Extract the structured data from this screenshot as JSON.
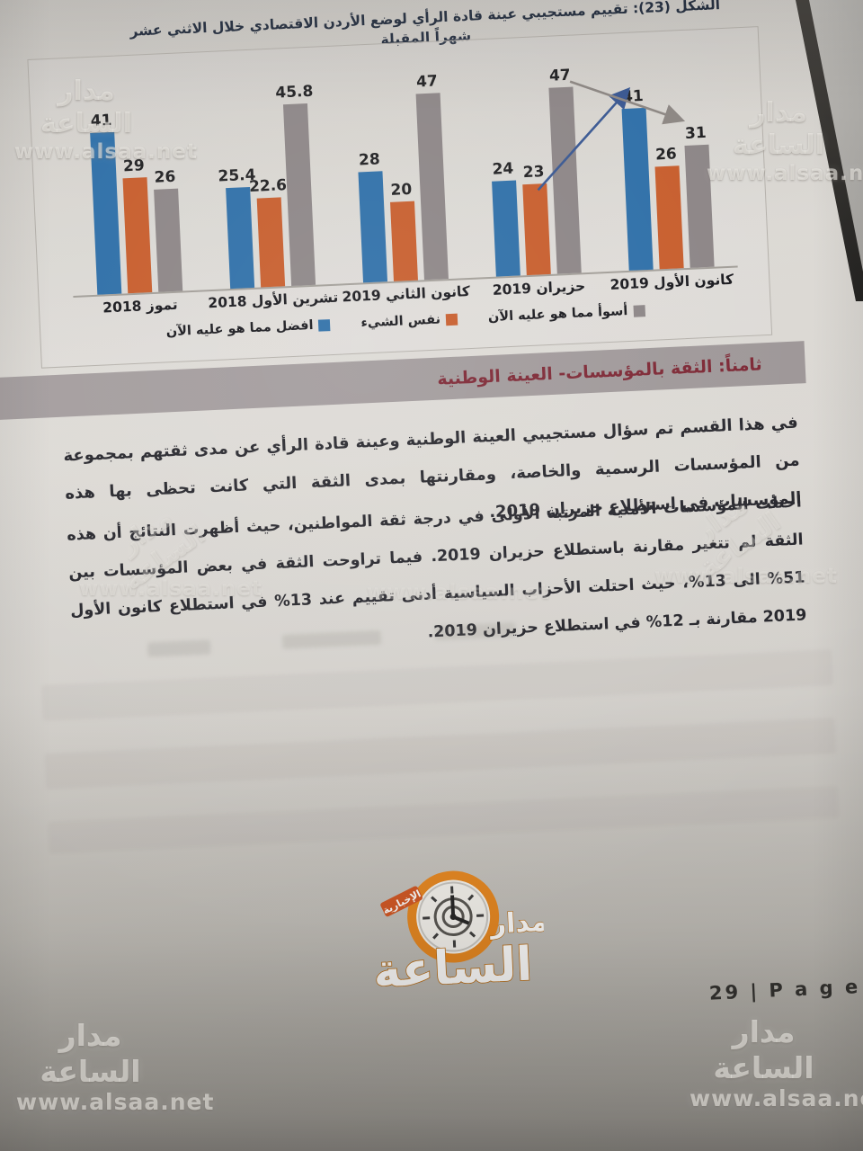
{
  "figure": {
    "title": "الشكل (23): تقييم مستجيبي عينة قادة الرأي لوضع الأردن الاقتصادي خلال الاثني عشر شهراً المقبلة"
  },
  "chart_data": {
    "type": "bar",
    "categories": [
      "تموز 2018",
      "تشرين الأول 2018",
      "كانون الثاني 2019",
      "حزيران 2019",
      "كانون الأول 2019"
    ],
    "series": [
      {
        "name": "افضل مما هو عليه الآن",
        "color": "#2a6ca6",
        "values": [
          41,
          25.4,
          28,
          24,
          41
        ]
      },
      {
        "name": "نفس الشيء",
        "color": "#c65a28",
        "values": [
          29,
          22.6,
          20,
          23,
          26
        ]
      },
      {
        "name": "أسوأ مما هو عليه الآن",
        "color": "#8a8384",
        "values": [
          26,
          45.8,
          47,
          47,
          31
        ]
      }
    ],
    "ylim": [
      0,
      50
    ],
    "grid": false,
    "legend_position": "bottom",
    "annotations": [
      "سهم أزرق صاعد من حزيران 2019 إلى قيمة 41 في كانون الأول 2019",
      "سهم رمادي من قمة 47 في حزيران 2019 إلى قيمة 31 في كانون الأول 2019"
    ]
  },
  "section": {
    "heading": "ثامناً: الثقة بالمؤسسات- العينة الوطنية"
  },
  "paragraphs": {
    "p1": "في هذا القسم تم سؤال مستجيبي العينة الوطنية وعينة قادة الرأي عن مدى ثقتهم بمجموعة من المؤسسات الرسمية والخاصة، ومقارنتها بمدى الثقة التي كانت تحظى بها هذه المؤسسات في استطلاع حزيران 2019.",
    "p2": "احتلت المؤسسات الأمنية المرتبة الأولى في درجة ثقة المواطنين، حيث أظهرت النتائج أن هذه الثقة لم تتغير مقارنة باستطلاع حزيران 2019. فيما تراوحت الثقة في بعض المؤسسات بين 51% الى 13%، حيث احتلت الأحزاب السياسية أدنى تقييم عند 13% في استطلاع كانون الأول 2019 مقارنة بـ 12% في استطلاع حزيران 2019."
  },
  "footer": {
    "page_label": "29 | P a g e"
  },
  "watermark": {
    "line1": "مدار الساعة",
    "line2": "www.alsaa.net"
  },
  "logo": {
    "name_top": "مدار",
    "name_main": "الساعة",
    "tagline": "الإخبارية"
  },
  "colors": {
    "bar_blue": "#2a6ca6",
    "bar_orange": "#c65a28",
    "bar_gray": "#8a8384",
    "heading_bg": "#9c9596",
    "heading_text": "#7b2431",
    "arrow_blue": "#35548f",
    "arrow_gray": "#8a8480"
  }
}
